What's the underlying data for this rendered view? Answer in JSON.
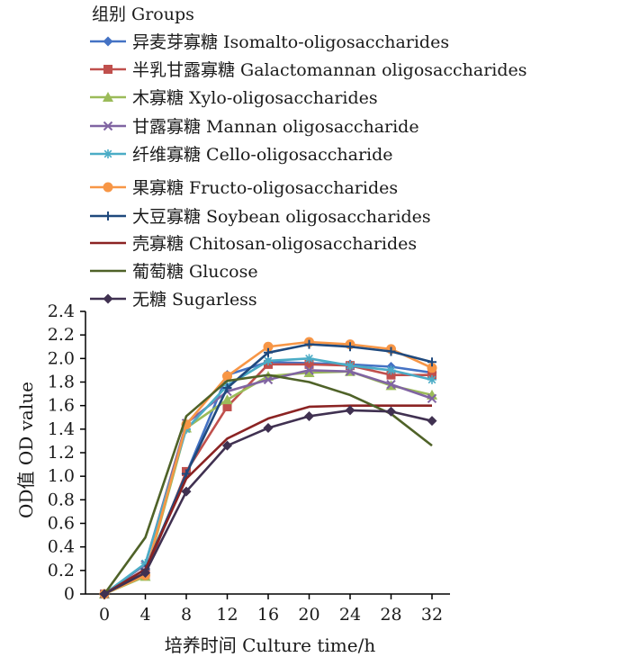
{
  "chart_data": {
    "type": "line",
    "legend_title": "组别 Groups",
    "xlabel": "培养时间  Culture time/h",
    "ylabel": "OD值  OD value",
    "x": [
      0,
      4,
      8,
      12,
      16,
      20,
      24,
      28,
      32
    ],
    "xlim": [
      0,
      32
    ],
    "ylim": [
      0,
      2.4
    ],
    "xticks": [
      "0",
      "4",
      "8",
      "12",
      "16",
      "20",
      "24",
      "28",
      "32"
    ],
    "yticks": [
      "0",
      "0.2",
      "0.4",
      "0.6",
      "0.8",
      "1.0",
      "1.2",
      "1.4",
      "1.6",
      "1.8",
      "2.0",
      "2.2",
      "2.4"
    ],
    "grid": false,
    "legend_position": "top",
    "series": [
      {
        "name": "异麦芽寡糖  Isomalto-oligosaccharides",
        "color": "#4472C4",
        "marker": "diamond",
        "values": [
          0,
          0.18,
          1.02,
          1.86,
          1.97,
          1.96,
          1.95,
          1.93,
          1.88
        ]
      },
      {
        "name": "半乳甘露寡糖  Galactomannan oligosaccharides",
        "color": "#C0504D",
        "marker": "square",
        "values": [
          0,
          0.17,
          1.04,
          1.59,
          1.95,
          1.95,
          1.94,
          1.86,
          1.86
        ]
      },
      {
        "name": "木寡糖  Xylo-oligosaccharides",
        "color": "#9BBB59",
        "marker": "triangle",
        "values": [
          0,
          0.15,
          1.41,
          1.65,
          1.85,
          1.88,
          1.89,
          1.77,
          1.69
        ]
      },
      {
        "name": "甘露寡糖  Mannan oligosaccharide",
        "color": "#8064A2",
        "marker": "x",
        "values": [
          0,
          0.25,
          1.45,
          1.72,
          1.82,
          1.9,
          1.89,
          1.78,
          1.66
        ]
      },
      {
        "name": "纤维寡糖  Cello-oligosaccharide",
        "color": "#4BACC6",
        "marker": "asterisk",
        "values": [
          0,
          0.26,
          1.4,
          1.77,
          1.98,
          2.0,
          1.94,
          1.9,
          1.82
        ]
      },
      {
        "name": "果寡糖  Fructo-oligosaccharides",
        "color": "#F79646",
        "marker": "circle",
        "values": [
          0,
          0.16,
          1.44,
          1.85,
          2.1,
          2.14,
          2.12,
          2.08,
          1.92
        ]
      },
      {
        "name": "大豆寡糖  Soybean oligosaccharides",
        "color": "#1F497D",
        "marker": "plus",
        "values": [
          0,
          0.21,
          1.02,
          1.75,
          2.05,
          2.12,
          2.1,
          2.06,
          1.97
        ]
      },
      {
        "name": "壳寡糖  Chitosan-oligosaccharides",
        "color": "#8B2323",
        "marker": "none",
        "values": [
          0,
          0.21,
          0.98,
          1.32,
          1.49,
          1.59,
          1.6,
          1.6,
          1.6
        ]
      },
      {
        "name": "葡萄糖  Glucose",
        "color": "#4F6228",
        "marker": "none",
        "values": [
          0,
          0.48,
          1.51,
          1.81,
          1.86,
          1.8,
          1.69,
          1.53,
          1.26
        ]
      },
      {
        "name": "无糖  Sugarless",
        "color": "#403151",
        "marker": "diamond",
        "values": [
          0,
          0.18,
          0.87,
          1.26,
          1.41,
          1.51,
          1.56,
          1.55,
          1.47
        ]
      }
    ]
  }
}
